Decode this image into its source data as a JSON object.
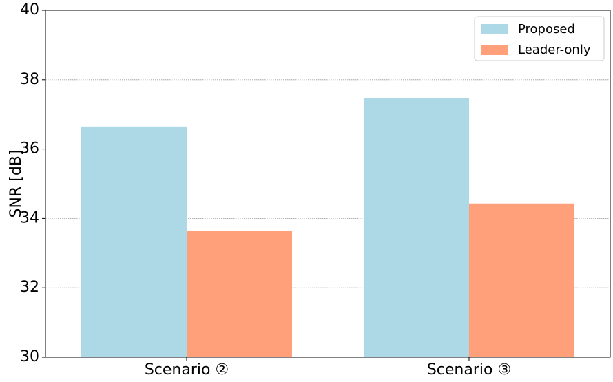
{
  "chart_data": {
    "type": "bar",
    "categories": [
      "Scenario ②",
      "Scenario ③"
    ],
    "series": [
      {
        "name": "Proposed",
        "values": [
          36.65,
          37.47
        ],
        "color": "#add8e6"
      },
      {
        "name": "Leader-only",
        "values": [
          33.65,
          34.43
        ],
        "color": "#ffa07a"
      }
    ],
    "title": "",
    "xlabel": "",
    "ylabel": "SNR [dB]",
    "ylim": [
      30,
      40
    ],
    "yticks": [
      30,
      32,
      34,
      36,
      38,
      40
    ],
    "grid": "horizontal dotted",
    "legend_position": "top-right"
  }
}
